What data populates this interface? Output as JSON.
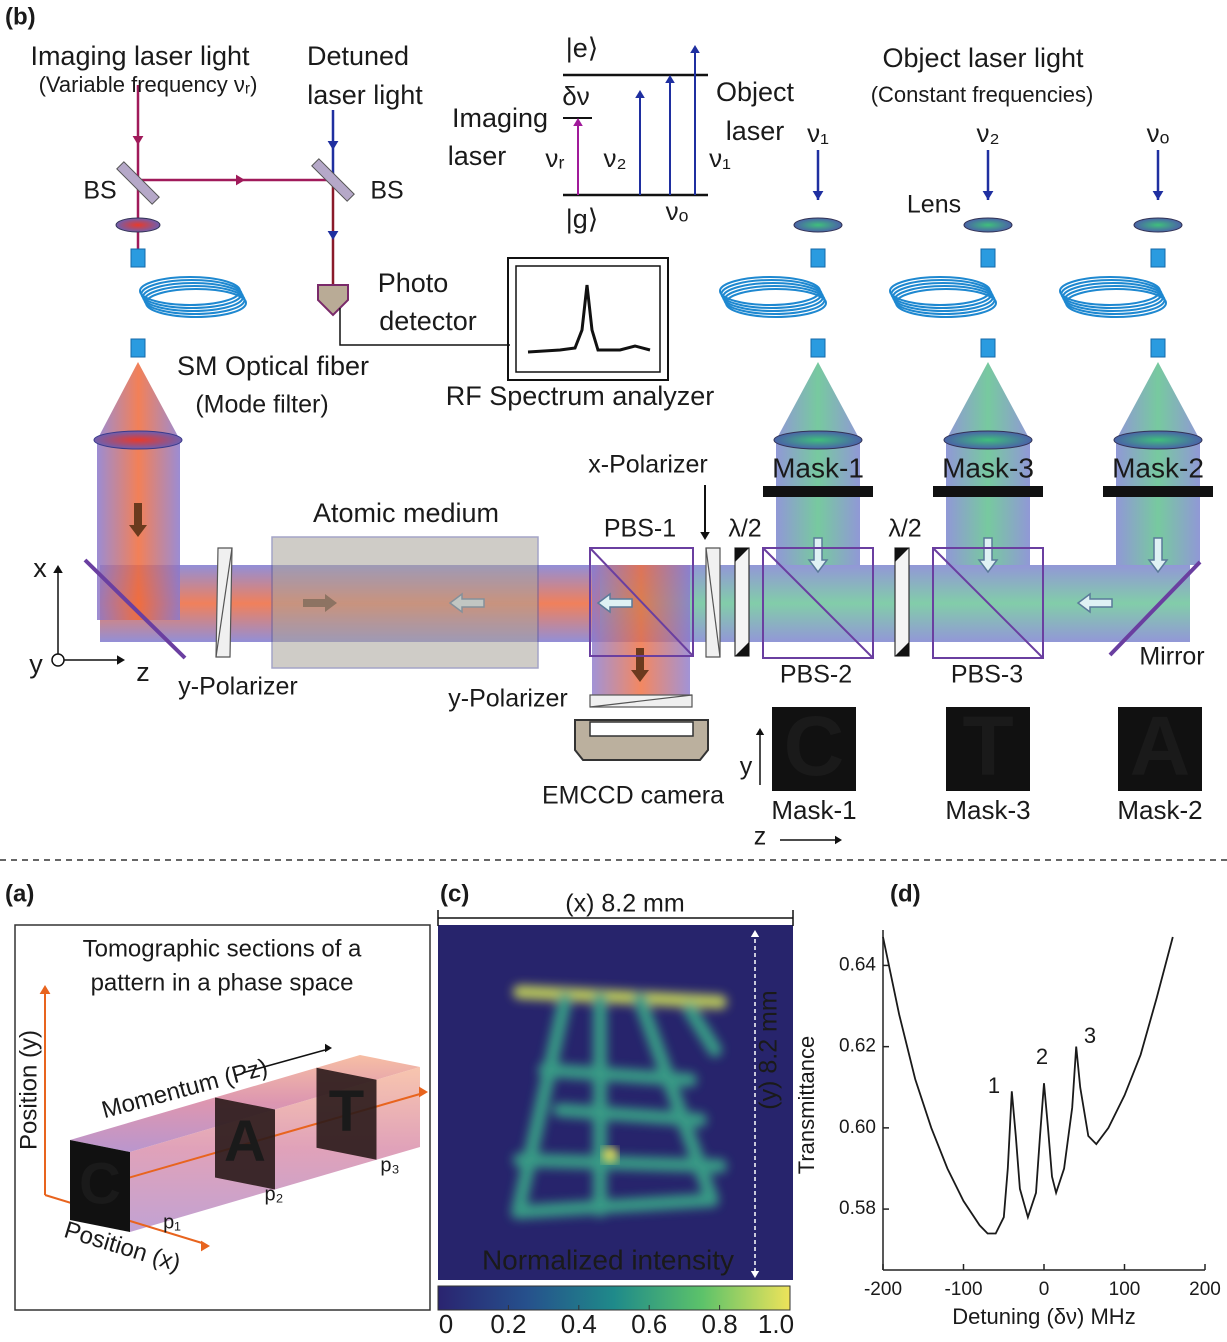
{
  "panel_b": {
    "label": "(b)",
    "imaging_laser": [
      "Imaging laser light",
      "(Variable frequency νᵣ)"
    ],
    "detuned_laser": [
      "Detuned",
      "laser light"
    ],
    "beam_splitters": [
      "BS",
      "BS"
    ],
    "levels": {
      "excited": "|e⟩",
      "ground": "|g⟩",
      "detuning": "δν",
      "imaging_laser": [
        "Imaging",
        "laser"
      ],
      "object_laser": [
        "Object",
        "laser"
      ],
      "frequencies": [
        "νᵣ",
        "ν₂",
        "νₒ",
        "ν₁"
      ]
    },
    "object_laser": [
      "Object laser light",
      "(Constant frequencies)"
    ],
    "beam_frequencies": [
      "ν₁",
      "ν₂",
      "νₒ"
    ],
    "lens": "Lens",
    "photo_detector": [
      "Photo",
      "detector"
    ],
    "rf_analyzer": "RF Spectrum analyzer",
    "fiber": [
      "SM Optical fiber",
      "(Mode filter)"
    ],
    "masks": [
      "Mask-1",
      "Mask-3",
      "Mask-2"
    ],
    "x_polarizer": "x-Polarizer",
    "half_wave_plates": [
      "λ/2",
      "λ/2"
    ],
    "atomic_medium": "Atomic medium",
    "beam_splitter_cubes": [
      "PBS-1",
      "PBS-2",
      "PBS-3"
    ],
    "mirror": "Mirror",
    "axes": [
      "x",
      "y",
      "z"
    ],
    "y_polarizers": [
      "y-Polarizer",
      "y-Polarizer"
    ],
    "camera": "EMCCD camera",
    "mask_letters": [
      "C",
      "T",
      "A"
    ],
    "mask_labels": [
      "Mask-1",
      "Mask-3",
      "Mask-2"
    ],
    "mask_axes": [
      "y",
      "z"
    ]
  },
  "panel_a": {
    "label": "(a)",
    "title": [
      "Tomographic sections of a",
      "pattern in a phase space"
    ],
    "axis_y": "Position (y)",
    "axis_x": "Position (x)",
    "axis_momentum": "Momentum (Pz)",
    "letters": [
      "C",
      "A",
      "T"
    ],
    "momenta": [
      "p₁",
      "p₂",
      "p₃"
    ]
  },
  "panel_c": {
    "label": "(c)",
    "width": "(x) 8.2 mm",
    "height": "(y) 8.2 mm",
    "caption": "Normalized intensity",
    "colorbar_lim": [
      0,
      1
    ],
    "colorbar_ticks": [
      0,
      0.2,
      0.4,
      0.6,
      0.8,
      {
        "value": 1,
        "label": "1.0"
      }
    ]
  },
  "chart_data": {
    "type": "line",
    "panel_label": "(d)",
    "xlabel": "Detuning (δν) MHz",
    "ylabel": "Transmittance",
    "xlim": [
      -200,
      200
    ],
    "ylim": [
      0.565,
      0.647
    ],
    "xticks": [
      -200,
      -100,
      0,
      100,
      200
    ],
    "yticks": [
      0.58,
      {
        "value": 0.6,
        "label": "0.60"
      },
      0.62,
      0.64
    ],
    "annotations": [
      "1",
      "2",
      "3"
    ],
    "series": [
      {
        "color": "#1a1a1a",
        "x": [
          -200,
          -180,
          -160,
          -140,
          -120,
          -100,
          -80,
          -70,
          -60,
          -50,
          -45,
          -40,
          -35,
          -30,
          -20,
          -10,
          -5,
          0,
          5,
          10,
          15,
          25,
          35,
          40,
          45,
          55,
          65,
          80,
          100,
          120,
          140,
          160
        ],
        "values": [
          0.647,
          0.628,
          0.612,
          0.6,
          0.59,
          0.582,
          0.576,
          0.574,
          0.574,
          0.578,
          0.59,
          0.609,
          0.598,
          0.585,
          0.578,
          0.584,
          0.598,
          0.611,
          0.6,
          0.588,
          0.584,
          0.59,
          0.605,
          0.62,
          0.61,
          0.598,
          0.596,
          0.6,
          0.608,
          0.618,
          0.632,
          0.647
        ]
      }
    ]
  }
}
